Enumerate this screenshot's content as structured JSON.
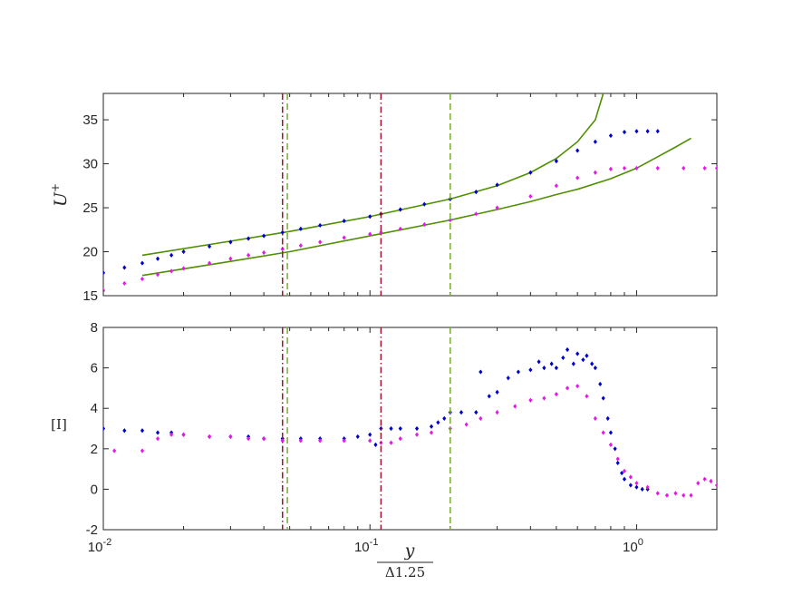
{
  "chart_data": [
    {
      "type": "scatter",
      "ylabel": "U",
      "ylabel_sup": "+",
      "ylim": [
        15,
        38
      ],
      "xlim": [
        0.01,
        2
      ],
      "xscale": "log",
      "yticks": [
        15,
        20,
        25,
        30,
        35
      ],
      "vlines": [
        {
          "x": 0.047,
          "color": "#a2142f",
          "style": "dashdot"
        },
        {
          "x": 0.049,
          "color": "#77ac30",
          "style": "dashed"
        },
        {
          "x": 0.11,
          "color": "#a2142f",
          "style": "dashdot"
        },
        {
          "x": 0.2,
          "color": "#77ac30",
          "style": "dashed"
        }
      ],
      "series": [
        {
          "color": "#0000cd",
          "marker": "diamond",
          "x": [
            0.01,
            0.012,
            0.014,
            0.016,
            0.018,
            0.02,
            0.025,
            0.03,
            0.035,
            0.04,
            0.047,
            0.055,
            0.065,
            0.08,
            0.1,
            0.11,
            0.13,
            0.16,
            0.2,
            0.25,
            0.3,
            0.4,
            0.5,
            0.6,
            0.7,
            0.8,
            0.9,
            1.0,
            1.1,
            1.2
          ],
          "y": [
            17.6,
            18.2,
            18.7,
            19.2,
            19.6,
            20.0,
            20.6,
            21.1,
            21.5,
            21.8,
            22.2,
            22.6,
            23.0,
            23.5,
            24.0,
            24.3,
            24.8,
            25.4,
            26.0,
            26.8,
            27.6,
            29.0,
            30.3,
            31.5,
            32.5,
            33.2,
            33.6,
            33.7,
            33.7,
            33.7
          ]
        },
        {
          "color": "#e41ae4",
          "marker": "diamond",
          "x": [
            0.01,
            0.012,
            0.014,
            0.016,
            0.018,
            0.02,
            0.025,
            0.03,
            0.035,
            0.04,
            0.047,
            0.055,
            0.065,
            0.08,
            0.1,
            0.11,
            0.13,
            0.16,
            0.2,
            0.25,
            0.3,
            0.4,
            0.5,
            0.6,
            0.7,
            0.8,
            0.9,
            1.0,
            1.2,
            1.5,
            1.8,
            2.0
          ],
          "y": [
            15.6,
            16.4,
            16.9,
            17.4,
            17.8,
            18.1,
            18.7,
            19.2,
            19.6,
            19.9,
            20.3,
            20.7,
            21.1,
            21.6,
            22.0,
            22.2,
            22.6,
            23.1,
            23.6,
            24.3,
            25.0,
            26.3,
            27.5,
            28.4,
            29.0,
            29.4,
            29.5,
            29.5,
            29.5,
            29.5,
            29.5,
            29.5
          ]
        }
      ],
      "fit_lines": [
        {
          "color": "#4f8f00",
          "x": [
            0.014,
            0.03,
            0.05,
            0.1,
            0.2,
            0.3,
            0.4,
            0.5,
            0.6,
            0.7,
            0.75
          ],
          "y": [
            19.6,
            21.2,
            22.3,
            24.0,
            26.0,
            27.5,
            29.0,
            30.6,
            32.5,
            35.0,
            38.0
          ]
        },
        {
          "color": "#4f8f00",
          "x": [
            0.014,
            0.03,
            0.05,
            0.1,
            0.2,
            0.3,
            0.4,
            0.5,
            0.6,
            0.8,
            1.0,
            1.2,
            1.4,
            1.6
          ],
          "y": [
            17.3,
            18.9,
            20.0,
            21.8,
            23.6,
            24.8,
            25.7,
            26.5,
            27.1,
            28.3,
            29.5,
            30.8,
            31.9,
            32.9
          ]
        }
      ]
    },
    {
      "type": "scatter",
      "ylabel": "[I]",
      "xlabel_num": "y",
      "xlabel_den": "Δ1.25",
      "ylim": [
        -2,
        8
      ],
      "xlim": [
        0.01,
        2
      ],
      "xscale": "log",
      "yticks": [
        -2,
        0,
        2,
        4,
        6,
        8
      ],
      "xticks": [
        {
          "value": 0.01,
          "base": "10",
          "exp": "-2"
        },
        {
          "value": 0.1,
          "base": "10",
          "exp": "-1"
        },
        {
          "value": 1.0,
          "base": "10",
          "exp": "0"
        }
      ],
      "vlines": [
        {
          "x": 0.047,
          "color": "#a2142f",
          "style": "dashdot"
        },
        {
          "x": 0.049,
          "color": "#77ac30",
          "style": "dashed"
        },
        {
          "x": 0.11,
          "color": "#a2142f",
          "style": "dashdot"
        },
        {
          "x": 0.2,
          "color": "#77ac30",
          "style": "dashed"
        }
      ],
      "series": [
        {
          "color": "#0000cd",
          "marker": "diamond",
          "x": [
            0.01,
            0.012,
            0.014,
            0.016,
            0.018,
            0.02,
            0.025,
            0.03,
            0.035,
            0.04,
            0.047,
            0.055,
            0.065,
            0.08,
            0.09,
            0.1,
            0.105,
            0.11,
            0.12,
            0.13,
            0.15,
            0.17,
            0.18,
            0.19,
            0.2,
            0.22,
            0.25,
            0.26,
            0.28,
            0.3,
            0.33,
            0.36,
            0.4,
            0.43,
            0.45,
            0.48,
            0.5,
            0.53,
            0.55,
            0.58,
            0.6,
            0.63,
            0.65,
            0.68,
            0.7,
            0.73,
            0.75,
            0.78,
            0.8,
            0.83,
            0.85,
            0.88,
            0.9,
            0.95,
            1.0,
            1.05,
            1.1
          ],
          "y": [
            3.0,
            2.9,
            2.9,
            2.8,
            2.8,
            2.7,
            2.6,
            2.6,
            2.6,
            2.5,
            2.5,
            2.5,
            2.5,
            2.5,
            2.6,
            2.7,
            2.2,
            3.0,
            3.0,
            3.0,
            3.0,
            3.1,
            3.3,
            3.5,
            3.8,
            3.8,
            3.8,
            5.8,
            4.6,
            4.8,
            5.5,
            5.8,
            5.9,
            6.3,
            6.0,
            6.2,
            6.0,
            6.5,
            6.9,
            6.2,
            6.7,
            6.4,
            6.6,
            6.2,
            6.0,
            5.2,
            4.5,
            3.5,
            2.8,
            2.0,
            1.3,
            0.8,
            0.5,
            0.2,
            0.1,
            0.0,
            0.0
          ]
        },
        {
          "color": "#e41ae4",
          "marker": "diamond",
          "x": [
            0.011,
            0.014,
            0.016,
            0.018,
            0.02,
            0.025,
            0.03,
            0.035,
            0.04,
            0.047,
            0.055,
            0.065,
            0.08,
            0.1,
            0.11,
            0.12,
            0.13,
            0.15,
            0.17,
            0.2,
            0.23,
            0.26,
            0.3,
            0.35,
            0.4,
            0.45,
            0.5,
            0.55,
            0.6,
            0.65,
            0.7,
            0.75,
            0.8,
            0.85,
            0.9,
            0.95,
            1.0,
            1.1,
            1.2,
            1.3,
            1.4,
            1.5,
            1.6,
            1.7,
            1.8,
            1.9,
            2.0
          ],
          "y": [
            1.9,
            1.9,
            2.5,
            2.7,
            2.7,
            2.6,
            2.6,
            2.5,
            2.5,
            2.4,
            2.4,
            2.4,
            2.4,
            2.4,
            2.3,
            2.3,
            2.5,
            2.7,
            2.8,
            3.0,
            3.2,
            3.5,
            3.8,
            4.1,
            4.4,
            4.5,
            4.7,
            5.0,
            5.1,
            4.6,
            3.5,
            2.8,
            2.2,
            1.5,
            0.9,
            0.6,
            0.3,
            0.1,
            -0.2,
            -0.3,
            -0.2,
            -0.3,
            -0.3,
            0.3,
            0.5,
            0.4,
            0.2
          ]
        }
      ]
    }
  ]
}
